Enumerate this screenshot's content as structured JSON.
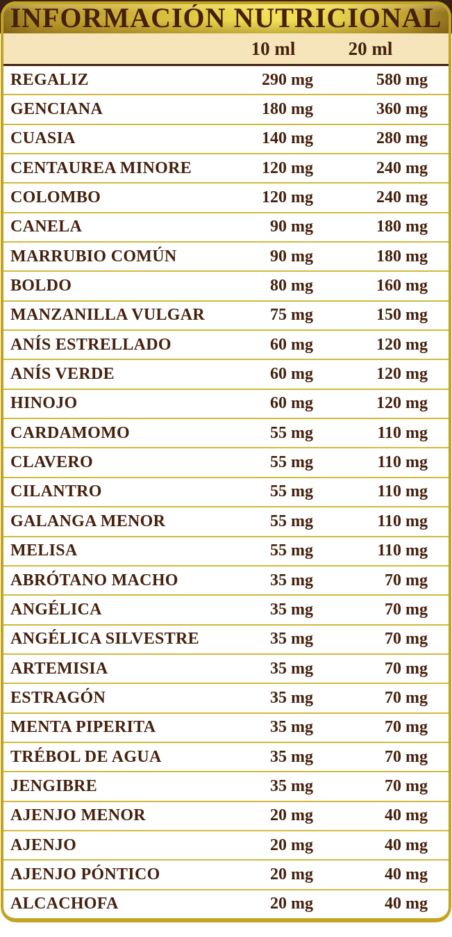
{
  "title": "INFORMACIÓN NUTRICIONAL",
  "columns": [
    "10 ml",
    "20 ml"
  ],
  "rows": [
    {
      "name": "REGALIZ",
      "per_10ml": "290 mg",
      "per_20ml": "580 mg"
    },
    {
      "name": "GENCIANA",
      "per_10ml": "180 mg",
      "per_20ml": "360 mg"
    },
    {
      "name": "CUASIA",
      "per_10ml": "140 mg",
      "per_20ml": "280 mg"
    },
    {
      "name": "CENTAUREA MINORE",
      "per_10ml": "120 mg",
      "per_20ml": "240 mg"
    },
    {
      "name": "COLOMBO",
      "per_10ml": "120 mg",
      "per_20ml": "240 mg"
    },
    {
      "name": "CANELA",
      "per_10ml": "90 mg",
      "per_20ml": "180 mg"
    },
    {
      "name": "MARRUBIO COMÚN",
      "per_10ml": "90 mg",
      "per_20ml": "180 mg"
    },
    {
      "name": "BOLDO",
      "per_10ml": "80 mg",
      "per_20ml": "160 mg"
    },
    {
      "name": "MANZANILLA VULGAR",
      "per_10ml": "75 mg",
      "per_20ml": "150 mg"
    },
    {
      "name": "ANÍS ESTRELLADO",
      "per_10ml": "60 mg",
      "per_20ml": "120 mg"
    },
    {
      "name": "ANÍS VERDE",
      "per_10ml": "60 mg",
      "per_20ml": "120 mg"
    },
    {
      "name": "HINOJO",
      "per_10ml": "60 mg",
      "per_20ml": "120 mg"
    },
    {
      "name": "CARDAMOMO",
      "per_10ml": "55 mg",
      "per_20ml": "110 mg"
    },
    {
      "name": "CLAVERO",
      "per_10ml": "55 mg",
      "per_20ml": "110 mg"
    },
    {
      "name": "CILANTRO",
      "per_10ml": "55 mg",
      "per_20ml": "110 mg"
    },
    {
      "name": "GALANGA MENOR",
      "per_10ml": "55 mg",
      "per_20ml": "110 mg"
    },
    {
      "name": "MELISA",
      "per_10ml": "55 mg",
      "per_20ml": "110 mg"
    },
    {
      "name": "ABRÓTANO MACHO",
      "per_10ml": "35 mg",
      "per_20ml": "70 mg"
    },
    {
      "name": "ANGÉLICA",
      "per_10ml": "35 mg",
      "per_20ml": "70 mg"
    },
    {
      "name": "ANGÉLICA SILVESTRE",
      "per_10ml": "35 mg",
      "per_20ml": "70 mg"
    },
    {
      "name": "ARTEMISIA",
      "per_10ml": "35 mg",
      "per_20ml": "70 mg"
    },
    {
      "name": "ESTRAGÓN",
      "per_10ml": "35 mg",
      "per_20ml": "70 mg"
    },
    {
      "name": "MENTA PIPERITA",
      "per_10ml": "35 mg",
      "per_20ml": "70 mg"
    },
    {
      "name": "TRÉBOL DE AGUA",
      "per_10ml": "35 mg",
      "per_20ml": "70 mg"
    },
    {
      "name": "JENGIBRE",
      "per_10ml": "35 mg",
      "per_20ml": "70 mg"
    },
    {
      "name": "AJENJO MENOR",
      "per_10ml": "20 mg",
      "per_20ml": "40 mg"
    },
    {
      "name": "AJENJO",
      "per_10ml": "20 mg",
      "per_20ml": "40 mg"
    },
    {
      "name": "AJENJO PÓNTICO",
      "per_10ml": "20 mg",
      "per_20ml": "40 mg"
    },
    {
      "name": "ALCACHOFA",
      "per_10ml": "20 mg",
      "per_20ml": "40 mg"
    }
  ],
  "colors": {
    "text_brown": "#45210d",
    "backdrop_brown": "#3a2113",
    "frame_gold": "#c3a322",
    "band_gold_bright": "#f3e158",
    "band_gold_dark": "#8d6f1e",
    "cream": "#f6e5ba",
    "row_line_gold": "#d2b93c",
    "header_separator_brown": "#40200e"
  }
}
